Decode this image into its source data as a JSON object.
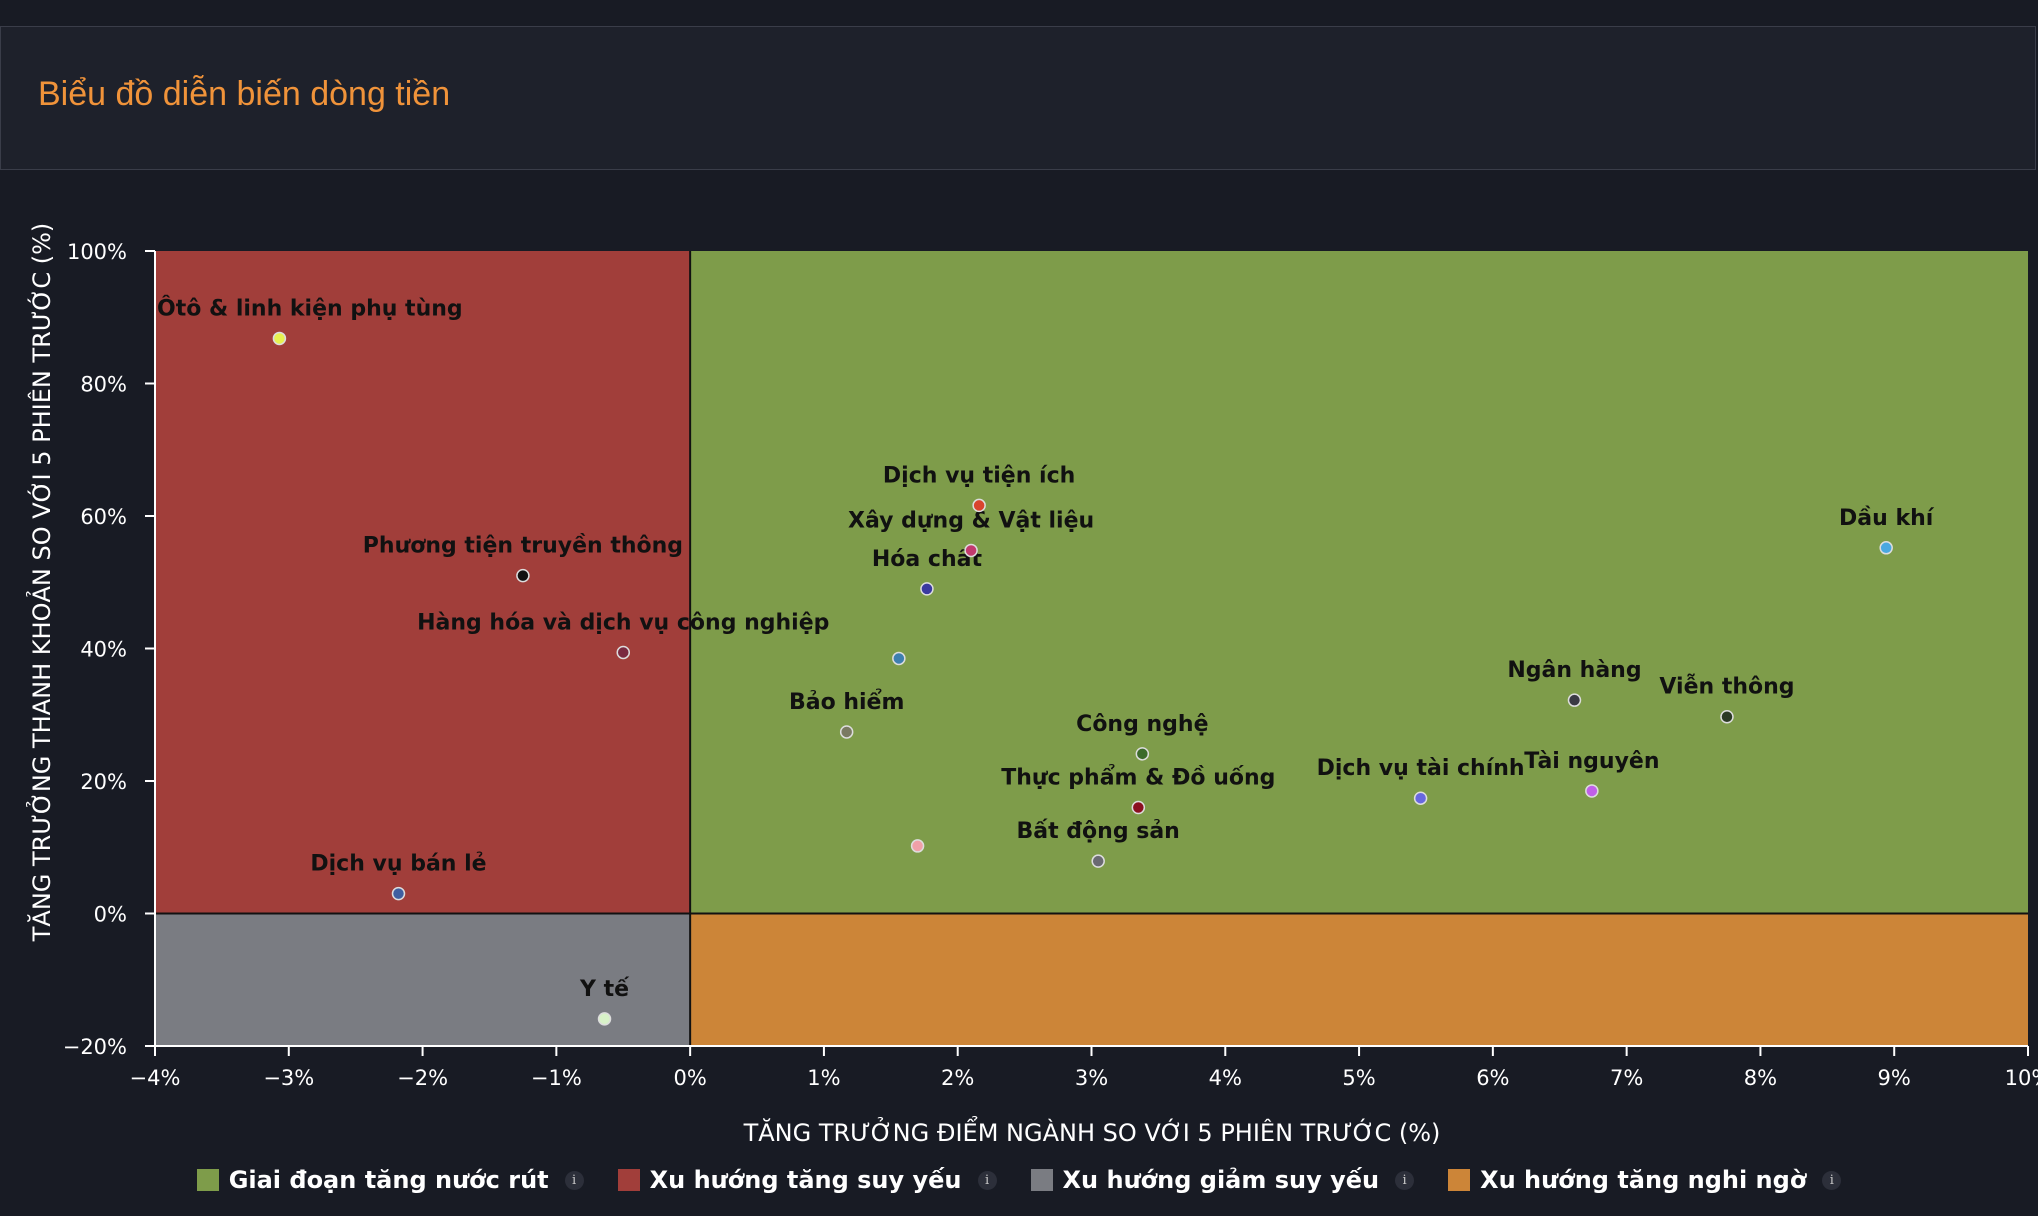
{
  "header": {
    "title": "Biểu đồ diễn biến dòng tiền"
  },
  "colors": {
    "background": "#181b24",
    "title": "#f0933a",
    "quadrant_top_right": "#7e9c4a",
    "quadrant_top_left": "#a13e3a",
    "quadrant_bottom_left": "#7a7c82",
    "quadrant_bottom_right": "#cc8538"
  },
  "chart_data": {
    "type": "scatter",
    "xlabel": "TĂNG TRƯỞNG ĐIỂM NGÀNH SO VỚI 5 PHIÊN TRƯỚC (%)",
    "ylabel": "TĂNG TRƯỞNG THANH KHOẢN SO VỚI 5 PHIÊN TRƯỚC (%)",
    "xlim": [
      -4,
      10
    ],
    "ylim": [
      -20,
      100
    ],
    "xticks": [
      -4,
      -3,
      -2,
      -1,
      0,
      1,
      2,
      3,
      4,
      5,
      6,
      7,
      8,
      9,
      10
    ],
    "yticks": [
      -20,
      0,
      20,
      40,
      60,
      80,
      100
    ],
    "xtick_labels": [
      "−4%",
      "−3%",
      "−2%",
      "−1%",
      "0%",
      "1%",
      "2%",
      "3%",
      "4%",
      "5%",
      "6%",
      "7%",
      "8%",
      "9%",
      "10%"
    ],
    "ytick_labels": [
      "−20%",
      "0%",
      "20%",
      "40%",
      "60%",
      "80%",
      "100%"
    ],
    "grid": false,
    "legend_position": "bottom-center",
    "quadrants": [
      {
        "name": "Giai đoạn tăng nước rút",
        "color": "#7e9c4a",
        "x": [
          0,
          10
        ],
        "y": [
          0,
          100
        ]
      },
      {
        "name": "Xu hướng tăng suy yếu",
        "color": "#a13e3a",
        "x": [
          -4,
          0
        ],
        "y": [
          0,
          100
        ]
      },
      {
        "name": "Xu hướng giảm suy yếu",
        "color": "#7a7c82",
        "x": [
          -4,
          0
        ],
        "y": [
          -20,
          0
        ]
      },
      {
        "name": "Xu hướng tăng nghi ngờ",
        "color": "#cc8538",
        "x": [
          0,
          10
        ],
        "y": [
          -20,
          0
        ]
      }
    ],
    "points": [
      {
        "label": "Ôtô & linh kiện phụ tùng",
        "x": -3.07,
        "y": 86.8,
        "color": "#e7f250"
      },
      {
        "label": "Phương tiện truyền thông",
        "x": -1.25,
        "y": 51.0,
        "color": "#111111"
      },
      {
        "label": "Hàng hóa và dịch vụ công nghiệp",
        "x": -0.5,
        "y": 39.4,
        "color": "#7a2a40"
      },
      {
        "label": "Dịch vụ bán lẻ",
        "x": -2.18,
        "y": 3.0,
        "color": "#3f5fa0"
      },
      {
        "label": "Y tế",
        "x": -0.64,
        "y": -15.9,
        "color": "#d8f2c8"
      },
      {
        "label": "Dịch vụ tiện ích",
        "x": 2.16,
        "y": 61.6,
        "color": "#d9442e"
      },
      {
        "label": "Xây dựng & Vật liệu",
        "x": 2.1,
        "y": 54.8,
        "color": "#c23a6e"
      },
      {
        "label": "Hóa chất",
        "x": 1.77,
        "y": 49.0,
        "color": "#3a3aa0"
      },
      {
        "label": "Bảo hiểm",
        "x": 1.17,
        "y": 27.4,
        "color": "#7a7a62"
      },
      {
        "label": "Công nghệ",
        "x": 3.38,
        "y": 24.1,
        "color": "#3b6a2a"
      },
      {
        "label": "Thực phẩm & Đồ uống",
        "x": 3.35,
        "y": 16.0,
        "color": "#8a1020"
      },
      {
        "label": "Bất động sản",
        "x": 3.05,
        "y": 7.9,
        "color": "#6a6a72"
      },
      {
        "label": "Dịch vụ tài chính",
        "x": 5.46,
        "y": 17.4,
        "color": "#6868e0"
      },
      {
        "label": "Ngân hàng",
        "x": 6.61,
        "y": 32.2,
        "color": "#3a3a44"
      },
      {
        "label": "Tài nguyên",
        "x": 6.74,
        "y": 18.5,
        "color": "#c060e8"
      },
      {
        "label": "Viễn thông",
        "x": 7.75,
        "y": 29.7,
        "color": "#2b3a24"
      },
      {
        "label": "Dầu khí",
        "x": 8.94,
        "y": 55.2,
        "color": "#4aa8e0"
      },
      {
        "label": "",
        "x": 1.56,
        "y": 38.5,
        "color": "#3e7fb0"
      },
      {
        "label": "",
        "x": 1.7,
        "y": 10.2,
        "color": "#f0a0a8"
      }
    ]
  },
  "legend": [
    {
      "label": "Giai đoạn tăng nước rút",
      "color": "#7e9c4a",
      "info_icon": "i"
    },
    {
      "label": "Xu hướng tăng suy yếu",
      "color": "#a13e3a",
      "info_icon": "i"
    },
    {
      "label": "Xu hướng giảm suy yếu",
      "color": "#7a7c82",
      "info_icon": "i"
    },
    {
      "label": "Xu hướng tăng nghi ngờ",
      "color": "#cc8538",
      "info_icon": "i"
    }
  ]
}
